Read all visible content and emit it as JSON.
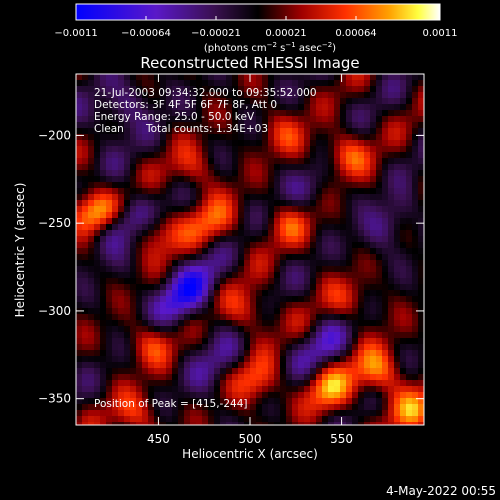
{
  "chart_data": {
    "type": "heatmap",
    "title": "Reconstructed RHESSI Image",
    "xlabel": "Heliocentric X (arcsec)",
    "ylabel": "Heliocentric Y (arcsec)",
    "xlim": [
      405,
      595
    ],
    "ylim": [
      -365,
      -165
    ],
    "x_ticks": [
      450,
      500,
      550
    ],
    "y_ticks": [
      -200,
      -250,
      -300,
      -350
    ],
    "x_tick_labels": [
      "450",
      "500",
      "550"
    ],
    "y_tick_labels": [
      "−200",
      "−250",
      "−300",
      "−350"
    ],
    "colorbar": {
      "min": -0.0011,
      "max": 0.0011,
      "tick_labels": [
        "−0.0011",
        "−0.00064",
        "−0.00021",
        "0.00021",
        "0.00064",
        "0.0011"
      ],
      "unit_prefix": "(photons cm",
      "unit_exp1": "−2",
      "unit_mid": " s",
      "unit_exp2": "−1",
      "unit_mid2": " asec",
      "unit_exp3": "−2",
      "unit_suffix": ")",
      "colormap": "blue-purple-black-red-orange-yellow-white"
    },
    "annotations": {
      "time_range": "21-Jul-2003 09:34:32.000 to 09:35:52.000",
      "detectors": "Detectors: 3F 4F 5F 6F 7F 8F, Att 0",
      "energy_range": "Energy Range: 25.0 - 50.0 keV",
      "method": "Clean",
      "total_counts": "Total counts: 1.34E+03",
      "peak": "Position of Peak = [415,-244]"
    },
    "peak_position": [
      415,
      -244
    ],
    "peak_value": 0.0011,
    "hot_spots": [
      {
        "x": 415,
        "y": -244,
        "v": 0.0011
      },
      {
        "x": 570,
        "y": -335,
        "v": 0.0009
      },
      {
        "x": 543,
        "y": -345,
        "v": 0.0008
      },
      {
        "x": 503,
        "y": -340,
        "v": 0.0007
      },
      {
        "x": 590,
        "y": -357,
        "v": 0.0007
      },
      {
        "x": 438,
        "y": -360,
        "v": 0.0006
      },
      {
        "x": 448,
        "y": -320,
        "v": 0.0006
      },
      {
        "x": 553,
        "y": -212,
        "v": 0.0007
      },
      {
        "x": 522,
        "y": -250,
        "v": 0.0006
      },
      {
        "x": 480,
        "y": -250,
        "v": 0.0006
      },
      {
        "x": 450,
        "y": -255,
        "v": 0.0006
      },
      {
        "x": 500,
        "y": -300,
        "v": 0.0006
      },
      {
        "x": 555,
        "y": -295,
        "v": 0.0005
      },
      {
        "x": 520,
        "y": -200,
        "v": 0.0005
      },
      {
        "x": 470,
        "y": -220,
        "v": 0.0005
      }
    ],
    "cold_spots": [
      {
        "x": 465,
        "y": -290,
        "v": -0.0011
      },
      {
        "x": 430,
        "y": -250,
        "v": -0.0008
      },
      {
        "x": 430,
        "y": -185,
        "v": -0.0006
      },
      {
        "x": 480,
        "y": -330,
        "v": -0.0005
      },
      {
        "x": 540,
        "y": -320,
        "v": -0.0005
      },
      {
        "x": 575,
        "y": -250,
        "v": -0.0005
      },
      {
        "x": 530,
        "y": -230,
        "v": -0.0004
      }
    ]
  },
  "footer": {
    "date": "4-May-2022 00:55"
  }
}
